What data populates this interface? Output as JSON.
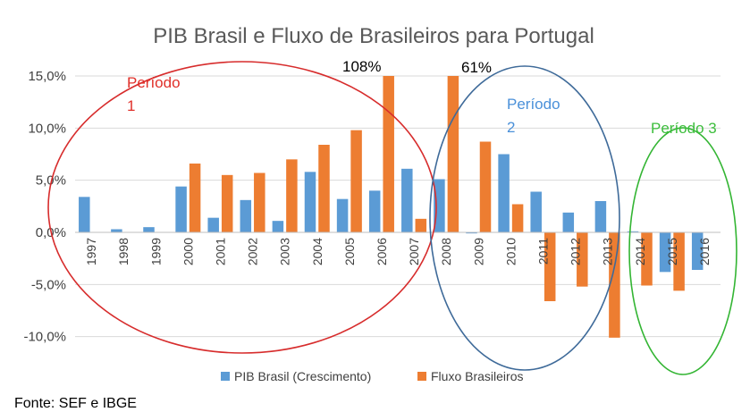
{
  "chart_data": {
    "type": "bar",
    "title": "PIB Brasil e Fluxo de Brasileiros para Portugal",
    "xlabel": "",
    "ylabel": "",
    "ylim": [
      -0.125,
      0.15
    ],
    "y_ticks": [
      {
        "value": 0.15,
        "label": "15,0%"
      },
      {
        "value": 0.1,
        "label": "10,0%"
      },
      {
        "value": 0.05,
        "label": "5,0%"
      },
      {
        "value": 0.0,
        "label": "0,0%"
      },
      {
        "value": -0.05,
        "label": "-5,0%"
      },
      {
        "value": -0.1,
        "label": "-10,0%"
      }
    ],
    "categories": [
      "1997",
      "1998",
      "1999",
      "2000",
      "2001",
      "2002",
      "2003",
      "2004",
      "2005",
      "2006",
      "2007",
      "2008",
      "2009",
      "2010",
      "2011",
      "2012",
      "2013",
      "2014",
      "2015",
      "2016"
    ],
    "series": [
      {
        "name": "PIB Brasil (Crescimento)",
        "color": "#5B9BD5",
        "values": [
          0.034,
          0.003,
          0.005,
          0.044,
          0.014,
          0.031,
          0.011,
          0.058,
          0.032,
          0.04,
          0.061,
          0.051,
          -0.001,
          0.075,
          0.039,
          0.019,
          0.03,
          0.001,
          -0.038,
          -0.036
        ]
      },
      {
        "name": "Fluxo Brasileiros",
        "color": "#ED7D31",
        "values": [
          null,
          null,
          null,
          0.066,
          0.055,
          0.057,
          0.07,
          0.084,
          0.098,
          0.15,
          0.013,
          0.15,
          0.087,
          0.027,
          -0.066,
          -0.052,
          -0.101,
          -0.051,
          -0.056,
          null
        ]
      }
    ],
    "annotations": {
      "label_108": {
        "text": "108%",
        "color": "#000000"
      },
      "label_61": {
        "text": "61%",
        "color": "#000000"
      },
      "periodo_1": {
        "line1": "Período",
        "line2": "1",
        "color": "#E0302A"
      },
      "periodo_2": {
        "line1": "Período",
        "line2": "2",
        "color": "#4A90D9"
      },
      "periodo_3": {
        "line1": "Período 3",
        "color": "#3DBE3D"
      }
    },
    "ellipse_colors": {
      "periodo_1": "#D72C2C",
      "periodo_2": "#3E6A99",
      "periodo_3": "#33B533"
    },
    "legend_position": "bottom",
    "grid": true
  },
  "source_note": "Fonte: SEF e IBGE"
}
